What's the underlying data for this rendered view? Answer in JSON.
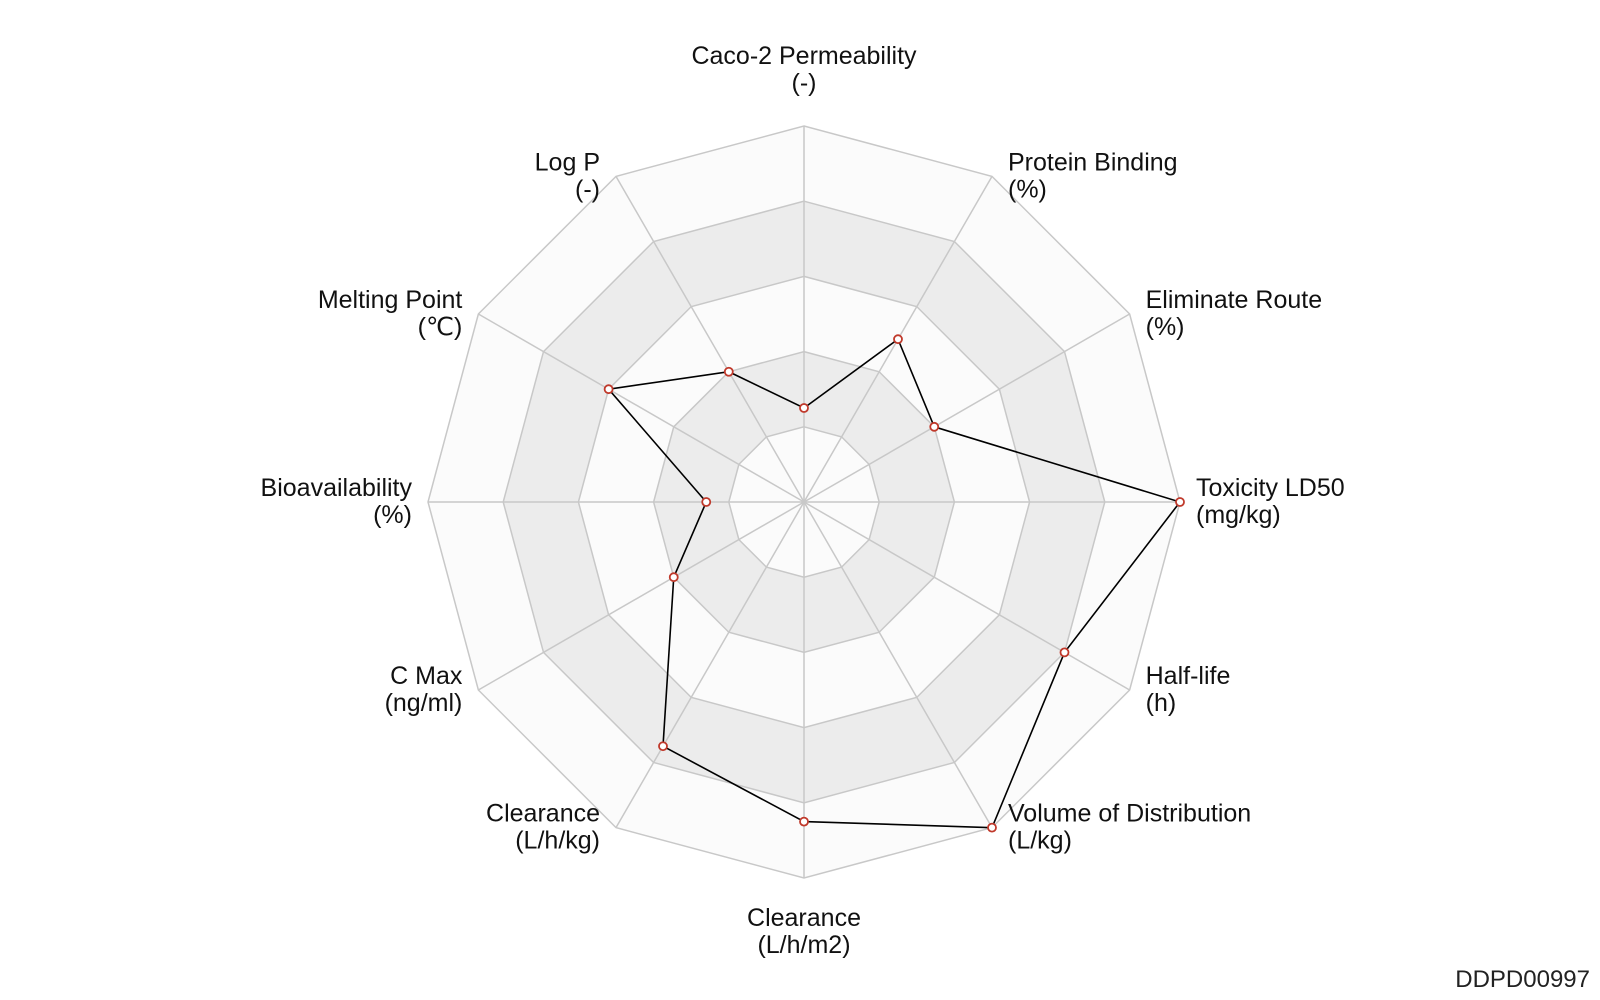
{
  "chart_data": {
    "type": "radar",
    "axes": [
      {
        "name": "Caco-2 Permeability",
        "unit": "(-)"
      },
      {
        "name": "Protein Binding",
        "unit": "(%)"
      },
      {
        "name": "Eliminate Route",
        "unit": "(%)"
      },
      {
        "name": "Toxicity LD50",
        "unit": "(mg/kg)"
      },
      {
        "name": "Half-life",
        "unit": "(h)"
      },
      {
        "name": "Volume of Distribution",
        "unit": "(L/kg)"
      },
      {
        "name": "Clearance",
        "unit": "(L/h/m2)"
      },
      {
        "name": "Clearance",
        "unit": "(L/h/kg)"
      },
      {
        "name": "C Max",
        "unit": "(ng/ml)"
      },
      {
        "name": "Bioavailability",
        "unit": "(%)"
      },
      {
        "name": "Melting Point",
        "unit": "(℃)"
      },
      {
        "name": "Log P",
        "unit": "(-)"
      }
    ],
    "series": [
      {
        "values": [
          0.25,
          0.5,
          0.4,
          1.0,
          0.8,
          1.0,
          0.85,
          0.75,
          0.4,
          0.26,
          0.6,
          0.4
        ]
      }
    ],
    "rlim": [
      0,
      1
    ],
    "rings": 5,
    "grid": true,
    "colors": {
      "line": "#000000",
      "marker_edge": "#c0392b",
      "marker_fill": "#ffffff",
      "band_shaded": "#ececec",
      "band_light": "#fbfbfb",
      "grid": "#c8c8c8"
    }
  },
  "footer": {
    "id": "DDPD00997"
  }
}
